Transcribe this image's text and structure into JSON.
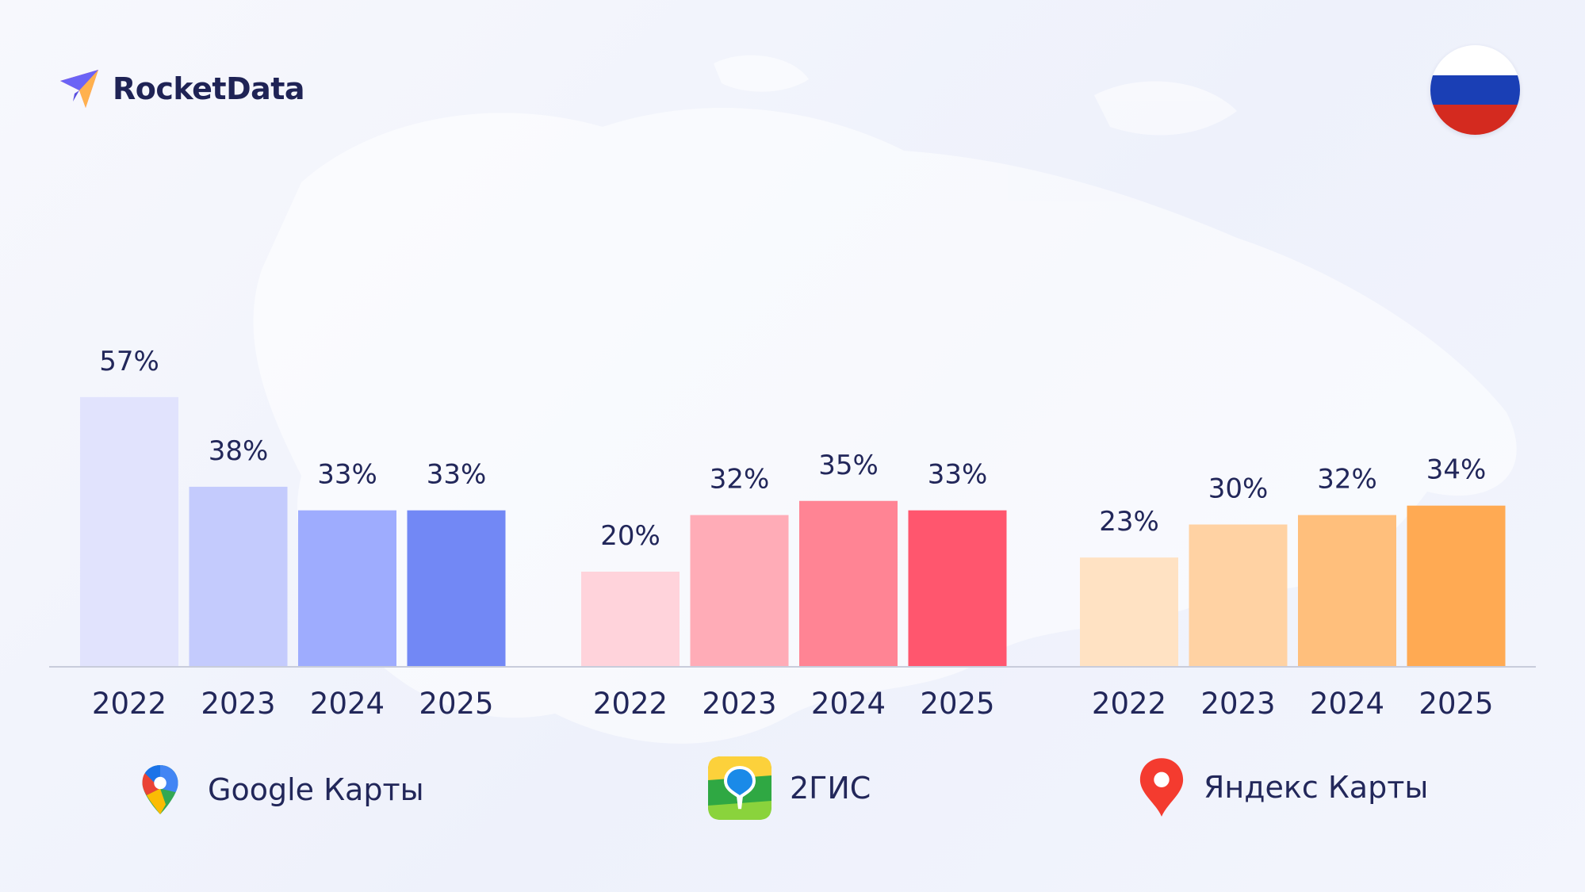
{
  "brand": {
    "name": "RocketData"
  },
  "flag": {
    "country": "Russia",
    "colors": [
      "#ffffff",
      "#1a3fb5",
      "#d42a1f"
    ]
  },
  "icons": {
    "brand": "paper-plane-logo-icon",
    "flag": "russia-flag-icon"
  },
  "chart_data": {
    "type": "bar",
    "title": "",
    "xlabel": "",
    "ylabel": "",
    "unit": "%",
    "ylim": [
      0,
      60
    ],
    "grid": false,
    "categories": [
      "2022",
      "2023",
      "2024",
      "2025"
    ],
    "groups": [
      {
        "name": "Google Карты",
        "icon": "google-maps-pin-icon",
        "values": [
          57,
          38,
          33,
          33
        ],
        "labels": [
          "57%",
          "38%",
          "33%",
          "33%"
        ],
        "colors": [
          "#e1e3fd",
          "#c4cbfd",
          "#9eacfe",
          "#7288f5"
        ]
      },
      {
        "name": "2ГИС",
        "icon": "2gis-app-icon",
        "values": [
          20,
          32,
          35,
          33
        ],
        "labels": [
          "20%",
          "32%",
          "35%",
          "33%"
        ],
        "colors": [
          "#ffd3db",
          "#ffacb7",
          "#ff8494",
          "#ff566e"
        ]
      },
      {
        "name": "Яндекс Карты",
        "icon": "yandex-maps-pin-icon",
        "values": [
          23,
          30,
          32,
          34
        ],
        "labels": [
          "23%",
          "30%",
          "32%",
          "34%"
        ],
        "colors": [
          "#ffe2c3",
          "#ffd2a3",
          "#ffbf7c",
          "#ffaa53"
        ]
      }
    ]
  }
}
